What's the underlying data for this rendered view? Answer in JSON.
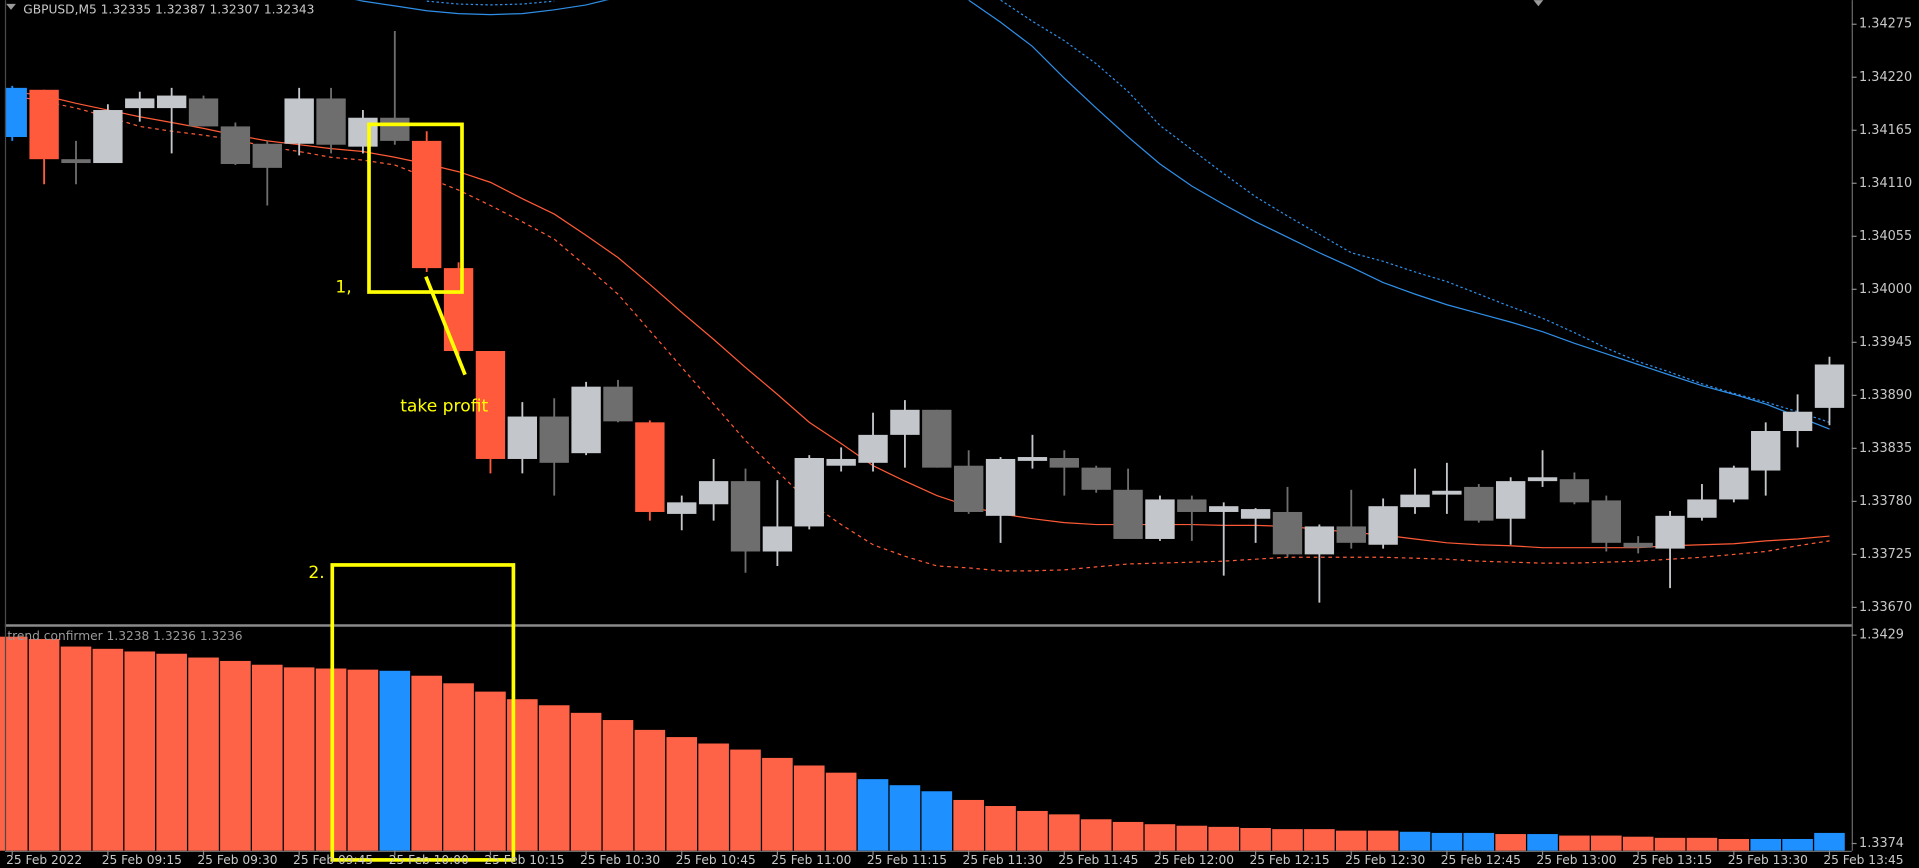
{
  "chart_data": [
    {
      "type": "candlestick",
      "title": "GBPUSD,M5  1.32335 1.32387 1.32307 1.32343",
      "annotations": [
        "1,",
        "take profit",
        "2."
      ],
      "categories": [
        "25 Feb 2022",
        null,
        null,
        "25 Feb 09:15",
        null,
        null,
        "25 Feb 09:30",
        null,
        null,
        "25 Feb 09:45",
        null,
        null,
        "25 Feb 10:00",
        null,
        null,
        "25 Feb 10:15",
        null,
        null,
        "25 Feb 10:30",
        null,
        null,
        "25 Feb 10:45",
        null,
        null,
        "25 Feb 11:00",
        null,
        null,
        "25 Feb 11:15",
        null,
        null,
        "25 Feb 11:30",
        null,
        null,
        "25 Feb 11:45",
        null,
        null,
        "25 Feb 12:00",
        null,
        null,
        "25 Feb 12:15",
        null,
        null,
        "25 Feb 12:30",
        null,
        null,
        "25 Feb 12:45",
        null,
        null,
        "25 Feb 13:00",
        null,
        null,
        "25 Feb 13:15",
        null,
        null,
        "25 Feb 13:30",
        null,
        null,
        "25 Feb 13:45"
      ],
      "ohlc": [
        [
          1.34158,
          1.34211,
          1.34154,
          1.34209
        ],
        [
          1.34207,
          1.34207,
          1.34109,
          1.34135
        ],
        [
          1.34135,
          1.34154,
          1.34109,
          1.34131
        ],
        [
          1.34131,
          1.34192,
          1.34131,
          1.34186
        ],
        [
          1.34188,
          1.34205,
          1.34174,
          1.34198
        ],
        [
          1.34188,
          1.34209,
          1.34141,
          1.34201
        ],
        [
          1.34198,
          1.34201,
          1.34169,
          1.34169
        ],
        [
          1.34169,
          1.34173,
          1.34129,
          1.3413
        ],
        [
          1.34151,
          1.34154,
          1.34087,
          1.34126
        ],
        [
          1.34151,
          1.34209,
          1.34139,
          1.34198
        ],
        [
          1.34198,
          1.34209,
          1.34141,
          1.3415
        ],
        [
          1.34148,
          1.34186,
          1.34141,
          1.34178
        ],
        [
          1.34178,
          1.34268,
          1.3415,
          1.34154
        ],
        [
          1.34154,
          1.34164,
          1.34018,
          1.34022
        ],
        [
          1.34022,
          1.34028,
          1.33932,
          1.33936
        ],
        [
          1.33936,
          1.33936,
          1.33809,
          1.33824
        ],
        [
          1.33824,
          1.33883,
          1.33809,
          1.33868
        ],
        [
          1.33868,
          1.33887,
          1.33786,
          1.3382
        ],
        [
          1.3383,
          1.33904,
          1.33828,
          1.33899
        ],
        [
          1.33899,
          1.33906,
          1.33862,
          1.33863
        ],
        [
          1.33862,
          1.33864,
          1.3376,
          1.33769
        ],
        [
          1.33767,
          1.33786,
          1.3375,
          1.33779
        ],
        [
          1.33777,
          1.33824,
          1.3376,
          1.33801
        ],
        [
          1.33801,
          1.33814,
          1.33706,
          1.33728
        ],
        [
          1.33728,
          1.33802,
          1.33713,
          1.33754
        ],
        [
          1.33754,
          1.33828,
          1.33751,
          1.33825
        ],
        [
          1.33817,
          1.33836,
          1.33811,
          1.33824
        ],
        [
          1.3382,
          1.33872,
          1.33811,
          1.33849
        ],
        [
          1.33849,
          1.33885,
          1.33815,
          1.33875
        ],
        [
          1.33875,
          1.33875,
          1.33815,
          1.33815
        ],
        [
          1.33817,
          1.33833,
          1.33767,
          1.33769
        ],
        [
          1.33765,
          1.33826,
          1.33737,
          1.33824
        ],
        [
          1.33822,
          1.33849,
          1.33814,
          1.33826
        ],
        [
          1.33825,
          1.33833,
          1.33786,
          1.33815
        ],
        [
          1.33815,
          1.33817,
          1.33789,
          1.33792
        ],
        [
          1.33792,
          1.33814,
          1.33741,
          1.33741
        ],
        [
          1.33741,
          1.33786,
          1.33739,
          1.33782
        ],
        [
          1.33782,
          1.33786,
          1.33739,
          1.33769
        ],
        [
          1.33769,
          1.33779,
          1.33703,
          1.33775
        ],
        [
          1.33762,
          1.33773,
          1.33737,
          1.33772
        ],
        [
          1.33769,
          1.33795,
          1.33722,
          1.33725
        ],
        [
          1.33725,
          1.33756,
          1.33675,
          1.33754
        ],
        [
          1.33754,
          1.33792,
          1.33731,
          1.33737
        ],
        [
          1.33735,
          1.33783,
          1.33731,
          1.33775
        ],
        [
          1.33774,
          1.33814,
          1.33767,
          1.33787
        ],
        [
          1.33787,
          1.3382,
          1.33767,
          1.33791
        ],
        [
          1.33795,
          1.33798,
          1.33758,
          1.3376
        ],
        [
          1.33762,
          1.33805,
          1.33735,
          1.33801
        ],
        [
          1.33801,
          1.33833,
          1.33795,
          1.33805
        ],
        [
          1.33803,
          1.3381,
          1.33777,
          1.33779
        ],
        [
          1.33781,
          1.33786,
          1.33728,
          1.33737
        ],
        [
          1.33737,
          1.33744,
          1.33726,
          1.33732
        ],
        [
          1.33731,
          1.3377,
          1.3369,
          1.33765
        ],
        [
          1.33763,
          1.33798,
          1.3376,
          1.33782
        ],
        [
          1.33782,
          1.33817,
          1.33779,
          1.33815
        ],
        [
          1.33812,
          1.33862,
          1.33786,
          1.33853
        ],
        [
          1.33853,
          1.33891,
          1.33836,
          1.33873
        ],
        [
          1.33877,
          1.3393,
          1.33859,
          1.33922
        ]
      ],
      "colors": [
        "#1e90ff",
        "#ff5a3c",
        "#6e6e6e",
        "#c3c7cc",
        "#c3c7cc",
        "#c3c7cc",
        "#6e6e6e",
        "#6e6e6e",
        "#6e6e6e",
        "#c3c7cc",
        "#6e6e6e",
        "#c3c7cc",
        "#6e6e6e",
        "#ff5a3c",
        "#ff5a3c",
        "#ff5a3c",
        "#c3c7cc",
        "#6e6e6e",
        "#c3c7cc",
        "#6e6e6e",
        "#ff5a3c",
        "#c3c7cc",
        "#c3c7cc",
        "#6e6e6e",
        "#c3c7cc",
        "#c3c7cc",
        "#c3c7cc",
        "#c3c7cc",
        "#c3c7cc",
        "#6e6e6e",
        "#6e6e6e",
        "#c3c7cc",
        "#c3c7cc",
        "#6e6e6e",
        "#6e6e6e",
        "#6e6e6e",
        "#c3c7cc",
        "#6e6e6e",
        "#c3c7cc",
        "#c3c7cc",
        "#6e6e6e",
        "#c3c7cc",
        "#6e6e6e",
        "#c3c7cc",
        "#c3c7cc",
        "#c3c7cc",
        "#6e6e6e",
        "#c3c7cc",
        "#c3c7cc",
        "#6e6e6e",
        "#6e6e6e",
        "#6e6e6e",
        "#c3c7cc",
        "#c3c7cc",
        "#c3c7cc",
        "#c3c7cc",
        "#c3c7cc",
        "#c3c7cc"
      ],
      "lines": [
        {
          "color": "#ff5a36",
          "dash": null,
          "values": [
            1.34205,
            1.34201,
            1.34193,
            1.34186,
            1.34179,
            1.34173,
            1.34167,
            1.3416,
            1.34154,
            1.3415,
            1.34146,
            1.34143,
            1.34137,
            1.3413,
            1.34122,
            1.34111,
            1.34094,
            1.34078,
            1.34056,
            1.34033,
            1.34005,
            1.33976,
            1.33948,
            1.33919,
            1.33891,
            1.33862,
            1.3384,
            1.33817,
            1.33801,
            1.33786,
            1.33775,
            1.33767,
            1.33762,
            1.33758,
            1.33756,
            1.33756,
            1.33756,
            1.33756,
            1.33755,
            1.33755,
            1.33754,
            1.33751,
            1.33748,
            1.33745,
            1.33741,
            1.33737,
            1.33735,
            1.33734,
            1.33732,
            1.33732,
            1.33732,
            1.33732,
            1.33734,
            1.33735,
            1.33736,
            1.33739,
            1.33741,
            1.33744
          ]
        },
        {
          "color": "#ff5a36",
          "dash": "3,3",
          "values": [
            1.34201,
            1.34195,
            1.34188,
            1.34179,
            1.34169,
            1.34164,
            1.3416,
            1.34155,
            1.34148,
            1.34143,
            1.34137,
            1.34134,
            1.34129,
            1.34116,
            1.34103,
            1.34087,
            1.3407,
            1.34052,
            1.34024,
            1.33995,
            1.33957,
            1.33919,
            1.33881,
            1.33843,
            1.33811,
            1.33779,
            1.33756,
            1.33735,
            1.33723,
            1.33713,
            1.33711,
            1.33708,
            1.33708,
            1.33709,
            1.33712,
            1.33715,
            1.33716,
            1.33717,
            1.33718,
            1.3372,
            1.33722,
            1.33722,
            1.33722,
            1.33722,
            1.33721,
            1.3372,
            1.33718,
            1.33717,
            1.33716,
            1.33716,
            1.33717,
            1.33718,
            1.3372,
            1.33722,
            1.33725,
            1.33728,
            1.33734,
            1.33739
          ]
        },
        {
          "color": "#2f8fe8",
          "dash": null,
          "values": [
            null,
            null,
            null,
            null,
            null,
            null,
            null,
            null,
            null,
            null,
            1.34306,
            1.34299,
            1.34294,
            1.34289,
            1.34286,
            1.34285,
            1.34286,
            1.3429,
            1.34295,
            1.34303,
            null,
            null,
            null,
            null,
            null,
            null,
            null,
            null,
            null,
            null,
            1.343,
            1.34277,
            1.34252,
            1.34219,
            1.34188,
            1.34158,
            1.3413,
            1.34107,
            1.34088,
            1.3407,
            1.34054,
            1.34038,
            1.34023,
            1.34007,
            1.33995,
            1.33984,
            1.33975,
            1.33966,
            1.33956,
            1.33944,
            1.33933,
            1.33922,
            1.33911,
            1.339,
            1.33891,
            1.33881,
            1.33868,
            1.33855
          ]
        },
        {
          "color": "#2f8fe8",
          "dash": "2,2",
          "values": [
            null,
            null,
            null,
            null,
            null,
            null,
            null,
            null,
            null,
            null,
            null,
            null,
            null,
            1.34299,
            1.34296,
            1.34295,
            1.34296,
            1.34299,
            null,
            null,
            null,
            null,
            null,
            null,
            null,
            null,
            null,
            null,
            null,
            null,
            null,
            1.343,
            1.34278,
            1.34258,
            1.34234,
            1.34205,
            1.3417,
            1.34145,
            1.3412,
            1.34096,
            1.34076,
            1.34057,
            1.34038,
            1.34029,
            1.34018,
            1.34008,
            1.33995,
            1.33982,
            1.3397,
            1.33955,
            1.33939,
            1.33925,
            1.33914,
            1.33902,
            1.33892,
            1.33883,
            1.33873,
            1.33862
          ]
        }
      ],
      "ylim": [
        1.33655,
        1.343
      ],
      "yticks": [
        1.34275,
        {
          "value": 1.3422,
          "label": "1.34220"
        },
        1.34165,
        {
          "value": 1.3411,
          "label": "1.34110"
        },
        1.34055,
        {
          "value": 1.34,
          "label": "1.34000"
        },
        1.33945,
        {
          "value": 1.3389,
          "label": "1.33890"
        },
        1.33835,
        {
          "value": 1.3378,
          "label": "1.33780"
        },
        1.33725,
        {
          "value": 1.3367,
          "label": "1.33670"
        }
      ]
    },
    {
      "type": "bar",
      "title": "trend confirmer   1.3238 1.3236 1.3236",
      "values": [
        1.34286,
        1.3428,
        1.3426,
        1.34254,
        1.34247,
        1.34241,
        1.34231,
        1.34222,
        1.34212,
        1.34205,
        1.34202,
        1.34199,
        1.34196,
        1.34183,
        1.34163,
        1.34141,
        1.34121,
        1.34105,
        1.34085,
        1.34066,
        1.3404,
        1.34021,
        1.34004,
        1.33988,
        1.33966,
        1.33946,
        1.33927,
        1.3391,
        1.33894,
        1.33878,
        1.33855,
        1.33839,
        1.33826,
        1.33817,
        1.33804,
        1.33797,
        1.33791,
        1.33787,
        1.33784,
        1.33781,
        1.33778,
        1.33778,
        1.33774,
        1.33774,
        1.33771,
        1.33768,
        1.33768,
        1.33765,
        1.33765,
        1.33761,
        1.33761,
        1.33758,
        1.33755,
        1.33755,
        1.33752,
        1.33752,
        1.33752,
        1.33768
      ],
      "colors": [
        "#ff6347",
        "#ff6347",
        "#ff6347",
        "#ff6347",
        "#ff6347",
        "#ff6347",
        "#ff6347",
        "#ff6347",
        "#ff6347",
        "#ff6347",
        "#ff6347",
        "#ff6347",
        "#1e90ff",
        "#ff6347",
        "#ff6347",
        "#ff6347",
        "#ff6347",
        "#ff6347",
        "#ff6347",
        "#ff6347",
        "#ff6347",
        "#ff6347",
        "#ff6347",
        "#ff6347",
        "#ff6347",
        "#ff6347",
        "#ff6347",
        "#1e90ff",
        "#1e90ff",
        "#1e90ff",
        "#ff6347",
        "#ff6347",
        "#ff6347",
        "#ff6347",
        "#ff6347",
        "#ff6347",
        "#ff6347",
        "#ff6347",
        "#ff6347",
        "#ff6347",
        "#ff6347",
        "#ff6347",
        "#ff6347",
        "#ff6347",
        "#1e90ff",
        "#1e90ff",
        "#1e90ff",
        "#ff6347",
        "#1e90ff",
        "#ff6347",
        "#ff6347",
        "#ff6347",
        "#ff6347",
        "#ff6347",
        "#ff6347",
        "#1e90ff",
        "#1e90ff",
        "#1e90ff"
      ],
      "ylim": [
        1.33721,
        1.34309
      ],
      "yticks": [
        1.3429,
        1.3374
      ]
    }
  ]
}
